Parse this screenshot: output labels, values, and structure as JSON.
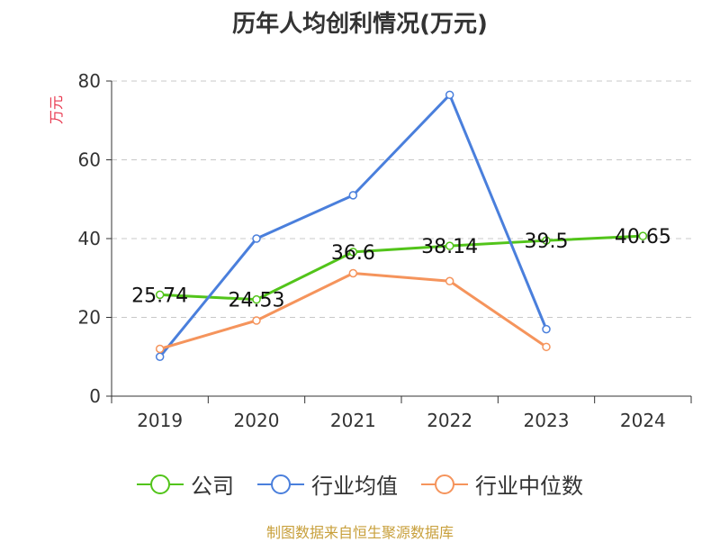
{
  "chart_data": {
    "type": "line",
    "title": "历年人均创利情况(万元)",
    "ylabel": "万元",
    "xlabel": "",
    "categories": [
      "2019",
      "2020",
      "2021",
      "2022",
      "2023",
      "2024"
    ],
    "ylim": [
      0,
      80
    ],
    "yticks": [
      0,
      20,
      40,
      60,
      80
    ],
    "grid": true,
    "legend_position": "bottom",
    "series": [
      {
        "name": "公司",
        "color": "#52c41a",
        "values": [
          25.74,
          24.53,
          36.6,
          38.14,
          39.5,
          40.65
        ],
        "labels": [
          "25.74",
          "24.53",
          "36.6",
          "38.14",
          "39.5",
          "40.65"
        ]
      },
      {
        "name": "行业均值",
        "color": "#4a7fdc",
        "values": [
          10,
          40,
          51,
          76.5,
          17,
          null
        ]
      },
      {
        "name": "行业中位数",
        "color": "#f5945c",
        "values": [
          12,
          19.2,
          31.2,
          29.2,
          12.5,
          null
        ]
      }
    ]
  },
  "source": "制图数据来自恒生聚源数据库"
}
